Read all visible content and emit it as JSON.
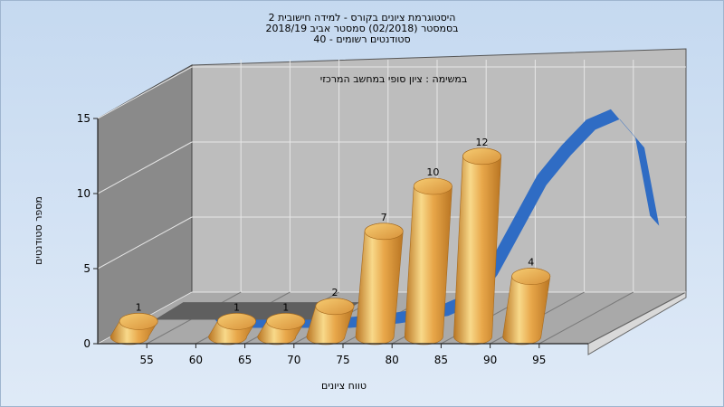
{
  "title_lines": [
    "היסטוגרמת ציונים בקורס - למידה חישובית 2",
    "בסמסטר (02/2018) סמסטר אביב 2018/19",
    "סטודנטים רשומים - 40"
  ],
  "chart_data": {
    "type": "bar",
    "subtitle": "במשימה : ציון סופי במחשב המרכזי",
    "xlabel": "טווח ציונים",
    "ylabel": "מספר סטודנטים",
    "x_ticks": [
      "55",
      "60",
      "65",
      "70",
      "75",
      "80",
      "85",
      "90",
      "95"
    ],
    "y_ticks": [
      0,
      5,
      10,
      15
    ],
    "ylim": [
      0,
      15
    ],
    "xlim": [
      50,
      100
    ],
    "series": [
      {
        "type": "bar",
        "bins": [
          50,
          55,
          60,
          65,
          70,
          75,
          80,
          85,
          90,
          95
        ],
        "values": [
          1,
          0,
          1,
          1,
          2,
          7,
          10,
          12,
          4,
          0
        ]
      },
      {
        "type": "line",
        "x": [
          57,
          60,
          65,
          70,
          75,
          80,
          82.5,
          85,
          87.5,
          90,
          92.5,
          95,
          97.5,
          100,
          101.5
        ],
        "values": [
          0,
          0,
          0,
          0,
          0.3,
          0.8,
          1.5,
          3.5,
          6.5,
          9.5,
          11.5,
          13.2,
          13.9,
          12.0,
          6.8
        ]
      }
    ],
    "grid": true,
    "colors": {
      "bar": "#e8a74a",
      "bar_highlight": "#f8d98a",
      "bar_shadow": "#b97522",
      "line": "#2f6cc4",
      "back_wall": "#bdbdbd",
      "side_wall": "#8a8a8a",
      "floor": "#a9a9a9"
    }
  }
}
